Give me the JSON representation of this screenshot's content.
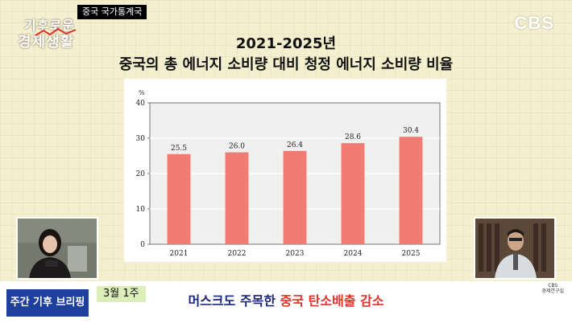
{
  "source_tag": "중국 국가통계국",
  "show_logo": {
    "line1": "기후로운",
    "line2": "경제생활"
  },
  "broadcaster": "CBS",
  "title": {
    "year": "2021-2025년",
    "main": "중국의 총 에너지 소비량 대비 청정 에너지 소비량 비율"
  },
  "colors": {
    "bar": "#ef7b72",
    "plot_bg": "#f0f0f0",
    "accent_blue": "#1f3f9c",
    "accent_red": "#e0322c",
    "date_tag": "#dcefb8"
  },
  "chart_data": {
    "type": "bar",
    "title": "",
    "ylabel": "%",
    "xlabel": "",
    "categories": [
      "2021",
      "2022",
      "2023",
      "2024",
      "2025"
    ],
    "values": [
      25.5,
      26.0,
      26.4,
      28.6,
      30.4
    ],
    "value_labels": [
      "25.5",
      "26.0",
      "26.4",
      "28.6",
      "30.4"
    ],
    "ylim": [
      0,
      40
    ],
    "yticks": [
      "0",
      "10",
      "20",
      "30",
      "40"
    ],
    "grid": true,
    "legend": "none"
  },
  "corner_logo": {
    "line1": "CBS",
    "line2": "경제연구실"
  },
  "bottom": {
    "briefing": "주간 기후 브리핑",
    "date": "3월 1주",
    "headline_part1": "머스크도 주목한 ",
    "headline_part2": "중국 탄소배출 감소"
  }
}
